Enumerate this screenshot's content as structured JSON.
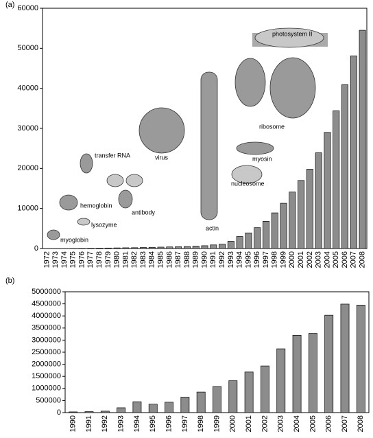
{
  "chart_data": [
    {
      "type": "bar",
      "panel": "(a)",
      "categories": [
        "1972",
        "1973",
        "1974",
        "1975",
        "1976",
        "1977",
        "1978",
        "1979",
        "1980",
        "1981",
        "1982",
        "1983",
        "1984",
        "1985",
        "1986",
        "1987",
        "1988",
        "1989",
        "1990",
        "1991",
        "1992",
        "1993",
        "1994",
        "1995",
        "1996",
        "1997",
        "1998",
        "1999",
        "2000",
        "2001",
        "2002",
        "2003",
        "2004",
        "2005",
        "2006",
        "2007",
        "2008"
      ],
      "values": [
        10,
        10,
        20,
        40,
        60,
        80,
        100,
        120,
        150,
        180,
        200,
        250,
        300,
        350,
        400,
        450,
        500,
        600,
        700,
        900,
        1100,
        1800,
        3000,
        3900,
        5200,
        6800,
        8900,
        11300,
        14100,
        17000,
        19800,
        23900,
        29000,
        34400,
        40900,
        48100,
        54500
      ],
      "color": "#8c8c8c",
      "ylim": [
        0,
        60000
      ],
      "yticks": [
        0,
        10000,
        20000,
        30000,
        40000,
        50000,
        60000
      ],
      "annotations": [
        "myoglobin",
        "lysozyme",
        "hemoglobin",
        "transfer RNA",
        "antibody",
        "virus",
        "actin",
        "ribosome",
        "photosystem II",
        "myosin",
        "nucleosome"
      ]
    },
    {
      "type": "bar",
      "panel": "(b)",
      "categories": [
        "1990",
        "1991",
        "1992",
        "1993",
        "1994",
        "1995",
        "1996",
        "1997",
        "1998",
        "1999",
        "2000",
        "2001",
        "2002",
        "2003",
        "2004",
        "2005",
        "2006",
        "2007",
        "2008"
      ],
      "values": [
        30000,
        40000,
        60000,
        200000,
        450000,
        350000,
        430000,
        640000,
        850000,
        1080000,
        1320000,
        1680000,
        1930000,
        2640000,
        3200000,
        3280000,
        4030000,
        4490000,
        4450000
      ],
      "color": "#8c8c8c",
      "ylim": [
        0,
        5000000
      ],
      "yticks": [
        0,
        500000,
        1000000,
        1500000,
        2000000,
        2500000,
        3000000,
        3500000,
        4000000,
        4500000,
        5000000
      ]
    }
  ]
}
